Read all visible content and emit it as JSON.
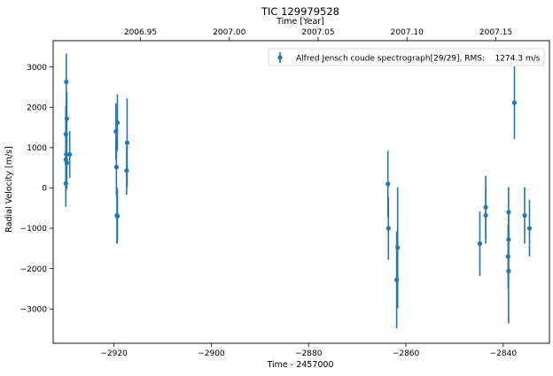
{
  "chart_data": {
    "type": "scatter",
    "title": "TIC 129979528",
    "xlabel": "Time - 2457000",
    "ylabel": "Radial Velocity [m/s]",
    "top_xlabel": "Time [Year]",
    "xlim": [
      -2932.5,
      -2830.5
    ],
    "ylim": [
      -3850,
      3650
    ],
    "x_ticks": [
      -2920,
      -2900,
      -2880,
      -2860,
      -2840
    ],
    "x_tick_labels": [
      "−2920",
      "−2900",
      "−2880",
      "−2860",
      "−2840"
    ],
    "y_ticks": [
      -3000,
      -2000,
      -1000,
      0,
      1000,
      2000,
      3000
    ],
    "y_tick_labels": [
      "−3000",
      "−2000",
      "−1000",
      "0",
      "1000",
      "2000",
      "3000"
    ],
    "top_ticks": [
      {
        "year": 2006.95,
        "label": "2006.95"
      },
      {
        "year": 2007.0,
        "label": "2007.00"
      },
      {
        "year": 2007.05,
        "label": "2007.05"
      },
      {
        "year": 2007.1,
        "label": "2007.10"
      },
      {
        "year": 2007.15,
        "label": "2007.15"
      }
    ],
    "grid": false,
    "legend_position": "top-right",
    "series": [
      {
        "name": "Alfred Jensch coude spectrograph[29/29], RMS:    1274.3 m/s",
        "color": "#1f77b4",
        "points": [
          {
            "x": -2929.8,
            "y": 2630,
            "err": 700
          },
          {
            "x": -2929.7,
            "y": 1720,
            "err": 650
          },
          {
            "x": -2929.9,
            "y": 1330,
            "err": 700
          },
          {
            "x": -2929.8,
            "y": 830,
            "err": 700
          },
          {
            "x": -2929.9,
            "y": 700,
            "err": 650
          },
          {
            "x": -2929.7,
            "y": 620,
            "err": 650
          },
          {
            "x": -2929.9,
            "y": 110,
            "err": 580
          },
          {
            "x": -2929.1,
            "y": 830,
            "err": 580
          },
          {
            "x": -2919.6,
            "y": 1400,
            "err": 700
          },
          {
            "x": -2919.3,
            "y": 1620,
            "err": 700
          },
          {
            "x": -2919.5,
            "y": 520,
            "err": 700
          },
          {
            "x": -2919.4,
            "y": -680,
            "err": 700
          },
          {
            "x": -2919.3,
            "y": -700,
            "err": 680
          },
          {
            "x": -2917.3,
            "y": 1120,
            "err": 1100
          },
          {
            "x": -2917.4,
            "y": 430,
            "err": 600
          },
          {
            "x": -2863.7,
            "y": 100,
            "err": 820
          },
          {
            "x": -2863.6,
            "y": -1000,
            "err": 780
          },
          {
            "x": -2861.7,
            "y": -1480,
            "err": 1500
          },
          {
            "x": -2861.9,
            "y": -2280,
            "err": 1200
          },
          {
            "x": -2844.8,
            "y": -1380,
            "err": 800
          },
          {
            "x": -2843.6,
            "y": -480,
            "err": 780
          },
          {
            "x": -2843.6,
            "y": -680,
            "err": 700
          },
          {
            "x": -2838.9,
            "y": -600,
            "err": 620
          },
          {
            "x": -2838.9,
            "y": -1280,
            "err": 700
          },
          {
            "x": -2839.0,
            "y": -1700,
            "err": 800
          },
          {
            "x": -2838.9,
            "y": -2060,
            "err": 1300
          },
          {
            "x": -2837.7,
            "y": 2110,
            "err": 900
          },
          {
            "x": -2835.6,
            "y": -680,
            "err": 700
          },
          {
            "x": -2834.6,
            "y": -1000,
            "err": 700
          }
        ]
      }
    ]
  }
}
